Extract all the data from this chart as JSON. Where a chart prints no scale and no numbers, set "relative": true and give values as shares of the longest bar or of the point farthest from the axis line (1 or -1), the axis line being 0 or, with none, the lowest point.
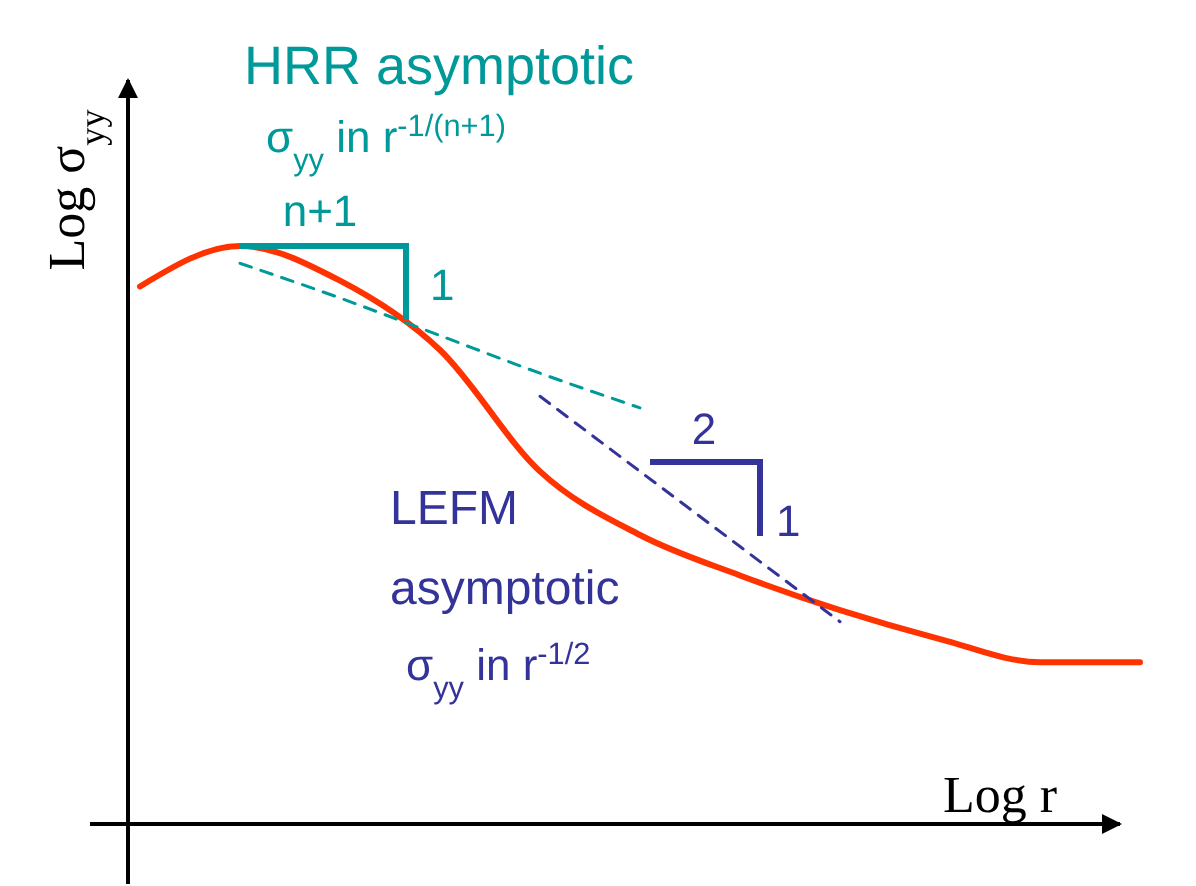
{
  "chart_data": {
    "type": "line",
    "relative": true,
    "xlabel": "Log r",
    "ylabel": "Log σ$_{yy}$",
    "marker": "none",
    "categories": [
      null,
      null,
      null,
      null,
      null,
      null,
      null,
      null,
      null,
      null,
      null
    ],
    "series": [
      {
        "color": "#ff3300",
        "line_style": "solid",
        "values": [
          0.93,
          1.0,
          0.94,
          0.82,
          0.61,
          0.5,
          0.43,
          0.37,
          0.32,
          0.28,
          0.28
        ]
      },
      {
        "color": "#009999",
        "line_style": "dashed",
        "values": [
          null,
          0.97,
          0.91,
          0.845,
          0.78,
          0.72,
          null,
          null,
          null,
          null,
          null
        ]
      },
      {
        "color": "#333399",
        "line_style": "dashed",
        "values": [
          null,
          null,
          null,
          null,
          0.74,
          0.61,
          0.48,
          0.35,
          null,
          null,
          null
        ]
      }
    ],
    "annotations": [
      "HRR asymptotic",
      "σ$_{yy}$ in r$^{-1/(n+1)}$",
      "n+1",
      "1",
      "LEFM",
      "asymptotic",
      "σ$_{yy}$ in r$^{-1/2}$",
      "2",
      "1"
    ]
  }
}
